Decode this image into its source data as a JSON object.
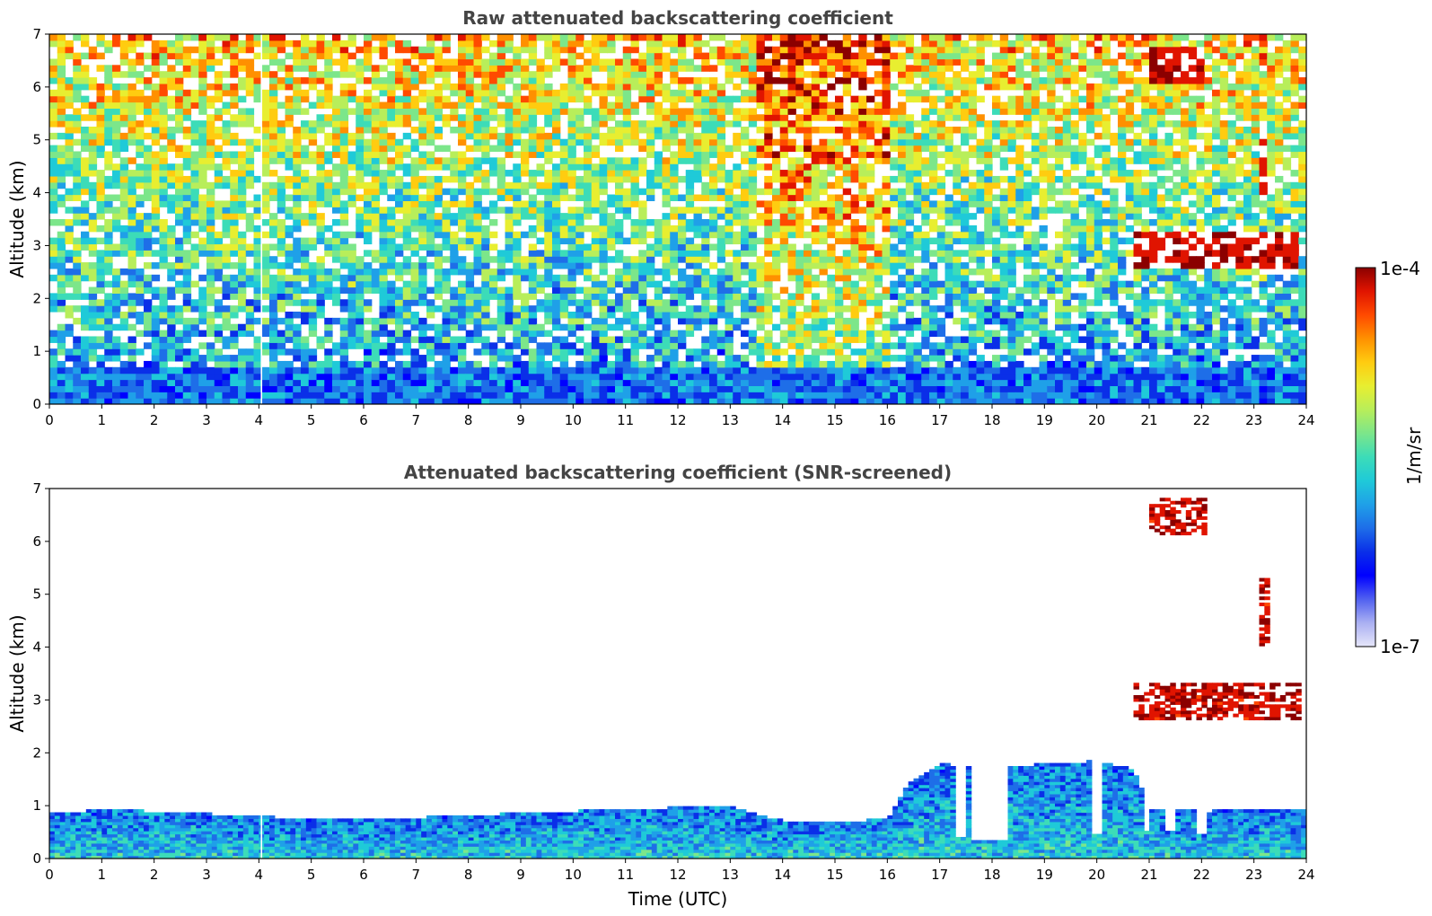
{
  "colors": {
    "colormap": [
      "#e6e6fa",
      "#aab0f2",
      "#5060f0",
      "#0000ff",
      "#0a2fe8",
      "#1e6ee8",
      "#1fa0e8",
      "#1fcad8",
      "#3cdcb8",
      "#7ce68a",
      "#b8ee5a",
      "#e8ee30",
      "#ffcc10",
      "#ff9000",
      "#ff4a00",
      "#e01400",
      "#8b0000"
    ],
    "axis": "#000000",
    "title": "#444444"
  },
  "colorbar": {
    "max_label": "1e-4",
    "min_label": "1e-7",
    "unit_label": "1/m/sr"
  },
  "chart_data": [
    {
      "type": "heatmap",
      "title": "Raw attenuated backscattering coefficient",
      "xlabel": "",
      "ylabel": "Altitude (km)",
      "xlim": [
        0,
        24
      ],
      "ylim": [
        0,
        7
      ],
      "xticks": [
        0,
        1,
        2,
        3,
        4,
        5,
        6,
        7,
        8,
        9,
        10,
        11,
        12,
        13,
        14,
        15,
        16,
        17,
        18,
        19,
        20,
        21,
        22,
        23,
        24
      ],
      "yticks": [
        0,
        1,
        2,
        3,
        4,
        5,
        6,
        7
      ],
      "value_scale": "log",
      "value_range": [
        "1e-7",
        "1e-4"
      ],
      "noisy": true,
      "features": [
        {
          "kind": "boundary_layer",
          "time": [
            0,
            24
          ],
          "top_km": 0.7
        },
        {
          "kind": "high_background",
          "time": [
            13.5,
            16.0
          ]
        },
        {
          "kind": "cloud",
          "time": [
            20.7,
            23.9
          ],
          "alt_km": [
            2.6,
            3.3
          ]
        },
        {
          "kind": "cloud",
          "time": [
            21.0,
            22.1
          ],
          "alt_km": [
            6.1,
            6.8
          ]
        },
        {
          "kind": "cloud",
          "time": [
            23.1,
            23.3
          ],
          "alt_km": [
            4.0,
            5.3
          ]
        },
        {
          "kind": "dropout",
          "time": 4.05
        }
      ]
    },
    {
      "type": "heatmap",
      "title": "Attenuated backscattering coefficient (SNR-screened)",
      "xlabel": "Time (UTC)",
      "ylabel": "Altitude (km)",
      "xlim": [
        0,
        24
      ],
      "ylim": [
        0,
        7
      ],
      "xticks": [
        0,
        1,
        2,
        3,
        4,
        5,
        6,
        7,
        8,
        9,
        10,
        11,
        12,
        13,
        14,
        15,
        16,
        17,
        18,
        19,
        20,
        21,
        22,
        23,
        24
      ],
      "yticks": [
        0,
        1,
        2,
        3,
        4,
        5,
        6,
        7
      ],
      "value_scale": "log",
      "value_range": [
        "1e-7",
        "1e-4"
      ],
      "noisy": false,
      "boundary_layer_top_km": [
        {
          "t": 0,
          "h": 0.87
        },
        {
          "t": 1,
          "h": 0.92
        },
        {
          "t": 2,
          "h": 0.9
        },
        {
          "t": 3,
          "h": 0.85
        },
        {
          "t": 4,
          "h": 0.8
        },
        {
          "t": 5,
          "h": 0.75
        },
        {
          "t": 6,
          "h": 0.76
        },
        {
          "t": 7,
          "h": 0.78
        },
        {
          "t": 8,
          "h": 0.82
        },
        {
          "t": 9,
          "h": 0.86
        },
        {
          "t": 10,
          "h": 0.9
        },
        {
          "t": 11,
          "h": 0.93
        },
        {
          "t": 12,
          "h": 0.97
        },
        {
          "t": 13,
          "h": 1.0
        },
        {
          "t": 13.5,
          "h": 0.85
        },
        {
          "t": 14,
          "h": 0.72
        },
        {
          "t": 15,
          "h": 0.7
        },
        {
          "t": 16,
          "h": 0.75
        },
        {
          "t": 16.4,
          "h": 1.4
        },
        {
          "t": 17,
          "h": 1.8
        },
        {
          "t": 18,
          "h": 1.7
        },
        {
          "t": 19,
          "h": 1.8
        },
        {
          "t": 20,
          "h": 1.85
        },
        {
          "t": 20.7,
          "h": 1.7
        },
        {
          "t": 21,
          "h": 0.95
        },
        {
          "t": 22,
          "h": 0.9
        },
        {
          "t": 23,
          "h": 0.92
        },
        {
          "t": 24,
          "h": 0.95
        }
      ],
      "gaps": [
        {
          "time": [
            17.3,
            17.5
          ],
          "bottom_km": 0.4
        },
        {
          "time": [
            17.65,
            18.3
          ],
          "bottom_km": 0.37
        },
        {
          "time": [
            19.9,
            20.1
          ],
          "bottom_km": 0.45
        },
        {
          "time": [
            20.9,
            21.0
          ],
          "bottom_km": 0.55
        },
        {
          "time": [
            21.35,
            21.5
          ],
          "bottom_km": 0.5
        },
        {
          "time": [
            21.95,
            22.1
          ],
          "bottom_km": 0.45
        }
      ],
      "features": [
        {
          "kind": "cloud",
          "time": [
            20.7,
            23.9
          ],
          "alt_km": [
            2.6,
            3.3
          ]
        },
        {
          "kind": "cloud",
          "time": [
            21.0,
            22.1
          ],
          "alt_km": [
            6.1,
            6.8
          ]
        },
        {
          "kind": "cloud",
          "time": [
            23.1,
            23.3
          ],
          "alt_km": [
            4.0,
            5.3
          ]
        },
        {
          "kind": "dropout",
          "time": 4.05
        }
      ]
    }
  ]
}
